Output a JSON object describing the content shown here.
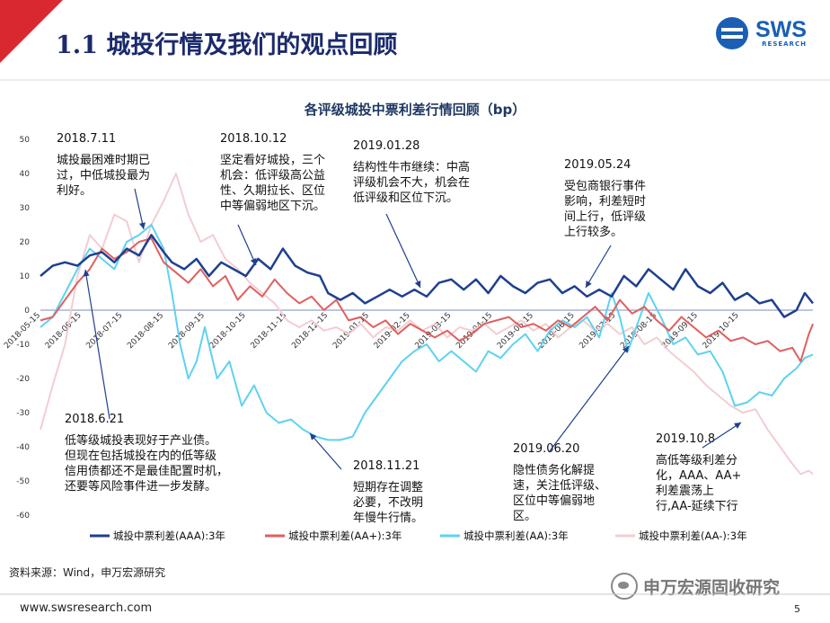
{
  "header": {
    "title": "1.1 城投行情及我们的观点回顾",
    "logo_text": "SWS",
    "logo_sub": "RESEARCH"
  },
  "colors": {
    "title": "#1a2a6c",
    "red_band": "#d9282f",
    "s1": "#1f3f8f",
    "s2": "#e15f5f",
    "s3": "#5ed2ef",
    "s4": "#f3cdd2"
  },
  "footer": {
    "source": "资料来源：Wind，申万宏源研究",
    "url": "www.swsresearch.com",
    "page": "5",
    "wechat": "申万宏源固收研究"
  },
  "chart_data": {
    "type": "line",
    "title": "各评级城投中票利差行情回顾（bp）",
    "ylim": [
      -60,
      50
    ],
    "yticks": [
      50,
      40,
      30,
      20,
      10,
      0,
      -10,
      -20,
      -30,
      -40,
      -50,
      -60
    ],
    "x_labels": [
      "2018-05-15",
      "2018-06-15",
      "2018-07-15",
      "2018-08-15",
      "2018-09-15",
      "2018-10-15",
      "2018-11-15",
      "2018-12-15",
      "2019-01-15",
      "2019-02-15",
      "2019-03-15",
      "2019-04-15",
      "2019-05-15",
      "2019-06-15",
      "2019-07-15",
      "2019-08-15",
      "2019-09-15",
      "2019-10-15"
    ],
    "x_range": [
      0,
      18.8
    ],
    "series": [
      {
        "name": "城投中票利差(AAA):3年",
        "color": "#1f3f8f",
        "width": 2.5,
        "points": [
          [
            0,
            10
          ],
          [
            0.3,
            13
          ],
          [
            0.6,
            14
          ],
          [
            0.9,
            13
          ],
          [
            1.2,
            16
          ],
          [
            1.5,
            17
          ],
          [
            1.8,
            14
          ],
          [
            2.1,
            18
          ],
          [
            2.4,
            16
          ],
          [
            2.7,
            22
          ],
          [
            3,
            17
          ],
          [
            3.2,
            14
          ],
          [
            3.5,
            12
          ],
          [
            3.8,
            15
          ],
          [
            4.1,
            10
          ],
          [
            4.4,
            14
          ],
          [
            4.7,
            12
          ],
          [
            5,
            10
          ],
          [
            5.3,
            15
          ],
          [
            5.6,
            12
          ],
          [
            5.9,
            18
          ],
          [
            6.2,
            13
          ],
          [
            6.5,
            11
          ],
          [
            6.8,
            10
          ],
          [
            7,
            5
          ],
          [
            7.3,
            3
          ],
          [
            7.6,
            5
          ],
          [
            7.9,
            2
          ],
          [
            8.2,
            4
          ],
          [
            8.5,
            6
          ],
          [
            8.8,
            4
          ],
          [
            9.1,
            6
          ],
          [
            9.4,
            4
          ],
          [
            9.7,
            8
          ],
          [
            10,
            9
          ],
          [
            10.3,
            6
          ],
          [
            10.6,
            9
          ],
          [
            10.9,
            5
          ],
          [
            11.2,
            10
          ],
          [
            11.5,
            7
          ],
          [
            11.8,
            5
          ],
          [
            12.1,
            8
          ],
          [
            12.4,
            9
          ],
          [
            12.7,
            5
          ],
          [
            13,
            7
          ],
          [
            13.3,
            4
          ],
          [
            13.6,
            6
          ],
          [
            13.9,
            4
          ],
          [
            14.2,
            10
          ],
          [
            14.5,
            7
          ],
          [
            14.8,
            12
          ],
          [
            15.1,
            9
          ],
          [
            15.4,
            6
          ],
          [
            15.7,
            12
          ],
          [
            16,
            7
          ],
          [
            16.3,
            5
          ],
          [
            16.6,
            8
          ],
          [
            16.9,
            3
          ],
          [
            17.2,
            5
          ],
          [
            17.5,
            2
          ],
          [
            17.8,
            3
          ],
          [
            18.1,
            -2
          ],
          [
            18.4,
            0
          ],
          [
            18.6,
            5
          ],
          [
            18.8,
            2
          ]
        ]
      },
      {
        "name": "城投中票利差(AA+):3年",
        "color": "#e15f5f",
        "width": 2,
        "points": [
          [
            0,
            -3
          ],
          [
            0.3,
            -2
          ],
          [
            0.6,
            3
          ],
          [
            0.9,
            8
          ],
          [
            1.2,
            12
          ],
          [
            1.5,
            18
          ],
          [
            1.8,
            15
          ],
          [
            2.1,
            17
          ],
          [
            2.4,
            20
          ],
          [
            2.7,
            21
          ],
          [
            3,
            14
          ],
          [
            3.3,
            11
          ],
          [
            3.6,
            8
          ],
          [
            3.9,
            12
          ],
          [
            4.2,
            7
          ],
          [
            4.5,
            10
          ],
          [
            4.8,
            3
          ],
          [
            5.1,
            7
          ],
          [
            5.4,
            4
          ],
          [
            5.7,
            9
          ],
          [
            6,
            5
          ],
          [
            6.3,
            2
          ],
          [
            6.6,
            4
          ],
          [
            6.9,
            0
          ],
          [
            7.2,
            3
          ],
          [
            7.5,
            -3
          ],
          [
            7.8,
            -2
          ],
          [
            8.1,
            -5
          ],
          [
            8.4,
            -3
          ],
          [
            8.7,
            -7
          ],
          [
            9,
            -4
          ],
          [
            9.3,
            -6
          ],
          [
            9.6,
            -8
          ],
          [
            9.9,
            -6
          ],
          [
            10.2,
            -9
          ],
          [
            10.5,
            -7
          ],
          [
            10.8,
            -4
          ],
          [
            11.1,
            -3
          ],
          [
            11.4,
            -2
          ],
          [
            11.7,
            -5
          ],
          [
            12,
            -4
          ],
          [
            12.3,
            -6
          ],
          [
            12.6,
            -3
          ],
          [
            12.9,
            -5
          ],
          [
            13.2,
            -2
          ],
          [
            13.5,
            1
          ],
          [
            13.8,
            -3
          ],
          [
            14.1,
            3
          ],
          [
            14.4,
            -1
          ],
          [
            14.7,
            1
          ],
          [
            15,
            -3
          ],
          [
            15.3,
            -6
          ],
          [
            15.6,
            -2
          ],
          [
            15.9,
            -5
          ],
          [
            16.2,
            -8
          ],
          [
            16.5,
            -6
          ],
          [
            16.8,
            -9
          ],
          [
            17.1,
            -8
          ],
          [
            17.4,
            -10
          ],
          [
            17.7,
            -9
          ],
          [
            18,
            -12
          ],
          [
            18.3,
            -11
          ],
          [
            18.5,
            -15
          ],
          [
            18.7,
            -7
          ],
          [
            18.8,
            -4
          ]
        ]
      },
      {
        "name": "城投中票利差(AA):3年",
        "color": "#5ed2ef",
        "width": 2,
        "points": [
          [
            0,
            -5
          ],
          [
            0.3,
            -2
          ],
          [
            0.6,
            5
          ],
          [
            0.9,
            12
          ],
          [
            1.2,
            18
          ],
          [
            1.5,
            15
          ],
          [
            1.8,
            12
          ],
          [
            2.1,
            20
          ],
          [
            2.4,
            22
          ],
          [
            2.7,
            25
          ],
          [
            3,
            18
          ],
          [
            3.2,
            5
          ],
          [
            3.4,
            -10
          ],
          [
            3.6,
            -20
          ],
          [
            3.8,
            -15
          ],
          [
            4,
            -5
          ],
          [
            4.3,
            -20
          ],
          [
            4.6,
            -15
          ],
          [
            4.9,
            -28
          ],
          [
            5.2,
            -22
          ],
          [
            5.5,
            -30
          ],
          [
            5.8,
            -33
          ],
          [
            6.1,
            -32
          ],
          [
            6.4,
            -35
          ],
          [
            6.7,
            -37
          ],
          [
            7,
            -38
          ],
          [
            7.3,
            -38
          ],
          [
            7.6,
            -37
          ],
          [
            7.9,
            -30
          ],
          [
            8.2,
            -25
          ],
          [
            8.5,
            -20
          ],
          [
            8.8,
            -15
          ],
          [
            9.1,
            -12
          ],
          [
            9.4,
            -10
          ],
          [
            9.7,
            -15
          ],
          [
            10,
            -12
          ],
          [
            10.3,
            -15
          ],
          [
            10.6,
            -18
          ],
          [
            10.9,
            -12
          ],
          [
            11.2,
            -14
          ],
          [
            11.5,
            -10
          ],
          [
            11.8,
            -7
          ],
          [
            12.1,
            -12
          ],
          [
            12.4,
            -6
          ],
          [
            12.7,
            -3
          ],
          [
            13,
            -5
          ],
          [
            13.3,
            -2
          ],
          [
            13.6,
            -8
          ],
          [
            13.9,
            5
          ],
          [
            14.1,
            -2
          ],
          [
            14.3,
            -12
          ],
          [
            14.5,
            -5
          ],
          [
            14.8,
            5
          ],
          [
            15.1,
            -2
          ],
          [
            15.4,
            -10
          ],
          [
            15.7,
            -8
          ],
          [
            16,
            -13
          ],
          [
            16.3,
            -12
          ],
          [
            16.6,
            -18
          ],
          [
            16.9,
            -28
          ],
          [
            17.2,
            -27
          ],
          [
            17.5,
            -24
          ],
          [
            17.8,
            -25
          ],
          [
            18.1,
            -20
          ],
          [
            18.4,
            -17
          ],
          [
            18.6,
            -14
          ],
          [
            18.8,
            -13
          ]
        ]
      },
      {
        "name": "城投中票利差(AA-):3年",
        "color": "#f3cdd2",
        "width": 2,
        "points": [
          [
            0,
            -35
          ],
          [
            0.3,
            -22
          ],
          [
            0.6,
            -10
          ],
          [
            0.9,
            10
          ],
          [
            1.2,
            22
          ],
          [
            1.5,
            18
          ],
          [
            1.8,
            28
          ],
          [
            2.1,
            26
          ],
          [
            2.4,
            14
          ],
          [
            2.7,
            25
          ],
          [
            3,
            32
          ],
          [
            3.3,
            40
          ],
          [
            3.6,
            28
          ],
          [
            3.9,
            20
          ],
          [
            4.2,
            22
          ],
          [
            4.5,
            15
          ],
          [
            4.8,
            12
          ],
          [
            5.1,
            8
          ],
          [
            5.4,
            5
          ],
          [
            5.7,
            2
          ],
          [
            6,
            -3
          ],
          [
            6.3,
            -5
          ],
          [
            6.6,
            -3
          ],
          [
            6.9,
            -6
          ],
          [
            7.2,
            -5
          ],
          [
            7.5,
            -7
          ],
          [
            7.8,
            -4
          ],
          [
            8.1,
            -8
          ],
          [
            8.4,
            -5
          ],
          [
            8.7,
            -6
          ],
          [
            9,
            -3
          ],
          [
            9.3,
            -6
          ],
          [
            9.6,
            -4
          ],
          [
            9.9,
            -8
          ],
          [
            10.2,
            -5
          ],
          [
            10.5,
            -6
          ],
          [
            10.8,
            -4
          ],
          [
            11.1,
            -7
          ],
          [
            11.4,
            -5
          ],
          [
            11.7,
            -3
          ],
          [
            12,
            -6
          ],
          [
            12.3,
            -4
          ],
          [
            12.6,
            -8
          ],
          [
            12.9,
            -5
          ],
          [
            13.2,
            -3
          ],
          [
            13.5,
            -6
          ],
          [
            13.8,
            -4
          ],
          [
            14.1,
            -7
          ],
          [
            14.4,
            -5
          ],
          [
            14.7,
            -10
          ],
          [
            15,
            -8
          ],
          [
            15.3,
            -12
          ],
          [
            15.6,
            -15
          ],
          [
            15.9,
            -18
          ],
          [
            16.2,
            -22
          ],
          [
            16.5,
            -25
          ],
          [
            16.8,
            -28
          ],
          [
            17.1,
            -30
          ],
          [
            17.4,
            -29
          ],
          [
            17.7,
            -35
          ],
          [
            18,
            -40
          ],
          [
            18.3,
            -45
          ],
          [
            18.5,
            -48
          ],
          [
            18.7,
            -47
          ],
          [
            18.8,
            -48
          ]
        ]
      }
    ],
    "annotations": [
      {
        "date": "2018.7.11",
        "text": [
          "城投最困难时期已",
          "过，中低城投最为",
          "利好。"
        ]
      },
      {
        "date": "2018.10.12",
        "text": [
          "坚定看好城投，三个",
          "机会：低评级高公益",
          "性、久期拉长、区位",
          "中等偏弱地区下沉。"
        ]
      },
      {
        "date": "2019.01.28",
        "text": [
          "结构性牛市继续：中高",
          "评级机会不大，机会在",
          "低评级和区位下沉。"
        ]
      },
      {
        "date": "2019.05.24",
        "text": [
          "受包商银行事件",
          "影响，利差短时",
          "间上行，低评级",
          "上行较多。"
        ]
      },
      {
        "date": "2018.6.21",
        "text": [
          "低等级城投表现好于产业债。",
          "但现在包括城投在内的低等级",
          "信用债都还不是最佳配置时机，",
          "还要等风险事件进一步发酵。"
        ]
      },
      {
        "date": "2018.11.21",
        "text": [
          "短期存在调整",
          "必要，不改明",
          "年慢牛行情。"
        ]
      },
      {
        "date": "2019.06.20",
        "text": [
          "隐性债务化解提",
          "速，关注低评级、",
          "区位中等偏弱地",
          "区。"
        ]
      },
      {
        "date": "2019.10.8",
        "text": [
          "高低等级利差分",
          "化，AAA、AA+",
          "利差震荡上",
          "行,AA-延续下行"
        ]
      }
    ]
  }
}
